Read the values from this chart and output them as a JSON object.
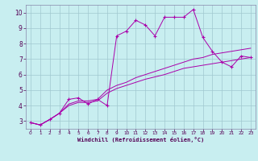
{
  "background_color": "#c8eef0",
  "grid_color": "#a0c8d0",
  "line_color": "#aa00aa",
  "xlim": [
    -0.5,
    23.5
  ],
  "ylim": [
    2.5,
    10.5
  ],
  "xticks": [
    0,
    1,
    2,
    3,
    4,
    5,
    6,
    7,
    8,
    9,
    10,
    11,
    12,
    13,
    14,
    15,
    16,
    17,
    18,
    19,
    20,
    21,
    22,
    23
  ],
  "yticks": [
    3,
    4,
    5,
    6,
    7,
    8,
    9,
    10
  ],
  "xlabel": "Windchill (Refroidissement éolien,°C)",
  "lines": [
    {
      "x": [
        0,
        1,
        2,
        3,
        4,
        5,
        6,
        7,
        8,
        9,
        10,
        11,
        12,
        13,
        14,
        15,
        16,
        17,
        18,
        19,
        20,
        21,
        22,
        23
      ],
      "y": [
        2.9,
        2.75,
        3.1,
        3.5,
        4.4,
        4.5,
        4.1,
        4.4,
        4.0,
        8.5,
        8.8,
        9.5,
        9.2,
        8.5,
        9.7,
        9.7,
        9.7,
        10.2,
        8.4,
        7.5,
        6.8,
        6.5,
        7.2,
        7.1
      ],
      "has_markers": true
    },
    {
      "x": [
        0,
        1,
        2,
        3,
        4,
        5,
        6,
        7,
        8,
        9,
        10,
        11,
        12,
        13,
        14,
        15,
        16,
        17,
        18,
        19,
        20,
        21,
        22,
        23
      ],
      "y": [
        2.9,
        2.75,
        3.1,
        3.5,
        4.1,
        4.3,
        4.3,
        4.4,
        5.0,
        5.3,
        5.5,
        5.8,
        6.0,
        6.2,
        6.4,
        6.6,
        6.8,
        7.0,
        7.1,
        7.3,
        7.4,
        7.5,
        7.6,
        7.7
      ],
      "has_markers": false
    },
    {
      "x": [
        0,
        1,
        2,
        3,
        4,
        5,
        6,
        7,
        8,
        9,
        10,
        11,
        12,
        13,
        14,
        15,
        16,
        17,
        18,
        19,
        20,
        21,
        22,
        23
      ],
      "y": [
        2.9,
        2.75,
        3.1,
        3.5,
        4.0,
        4.2,
        4.2,
        4.3,
        4.8,
        5.1,
        5.3,
        5.5,
        5.7,
        5.85,
        6.0,
        6.2,
        6.4,
        6.5,
        6.6,
        6.7,
        6.8,
        6.9,
        7.0,
        7.1
      ],
      "has_markers": false
    }
  ]
}
